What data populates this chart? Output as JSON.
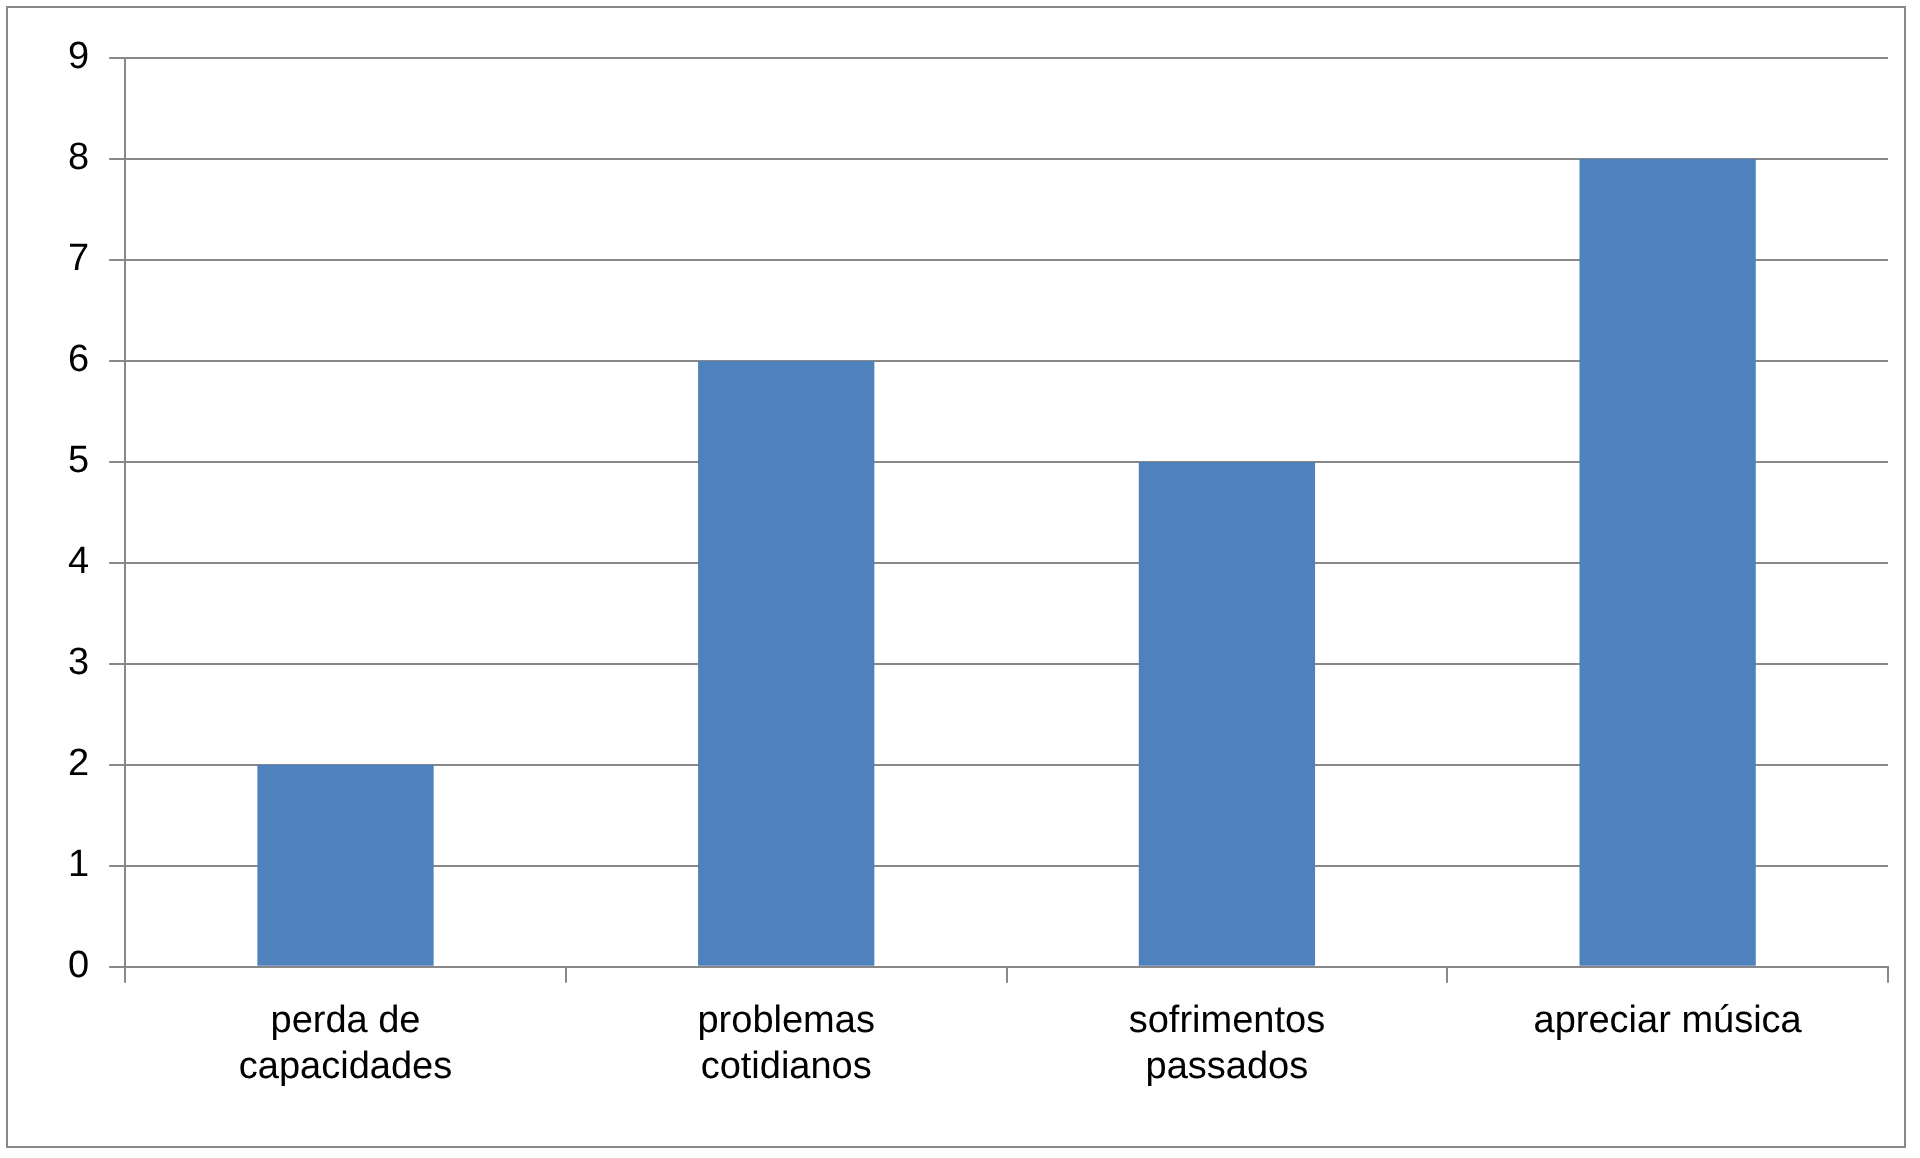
{
  "chart_data": {
    "type": "bar",
    "categories": [
      "perda de capacidades",
      "problemas cotidianos",
      "sofrimentos passados",
      "apreciar música"
    ],
    "values": [
      2,
      6,
      5,
      8
    ],
    "color": "#4f81bd",
    "ylim": [
      0,
      9
    ],
    "yticks": [
      0,
      1,
      2,
      3,
      4,
      5,
      6,
      7,
      8,
      9
    ],
    "grid": "y",
    "legend": false
  }
}
